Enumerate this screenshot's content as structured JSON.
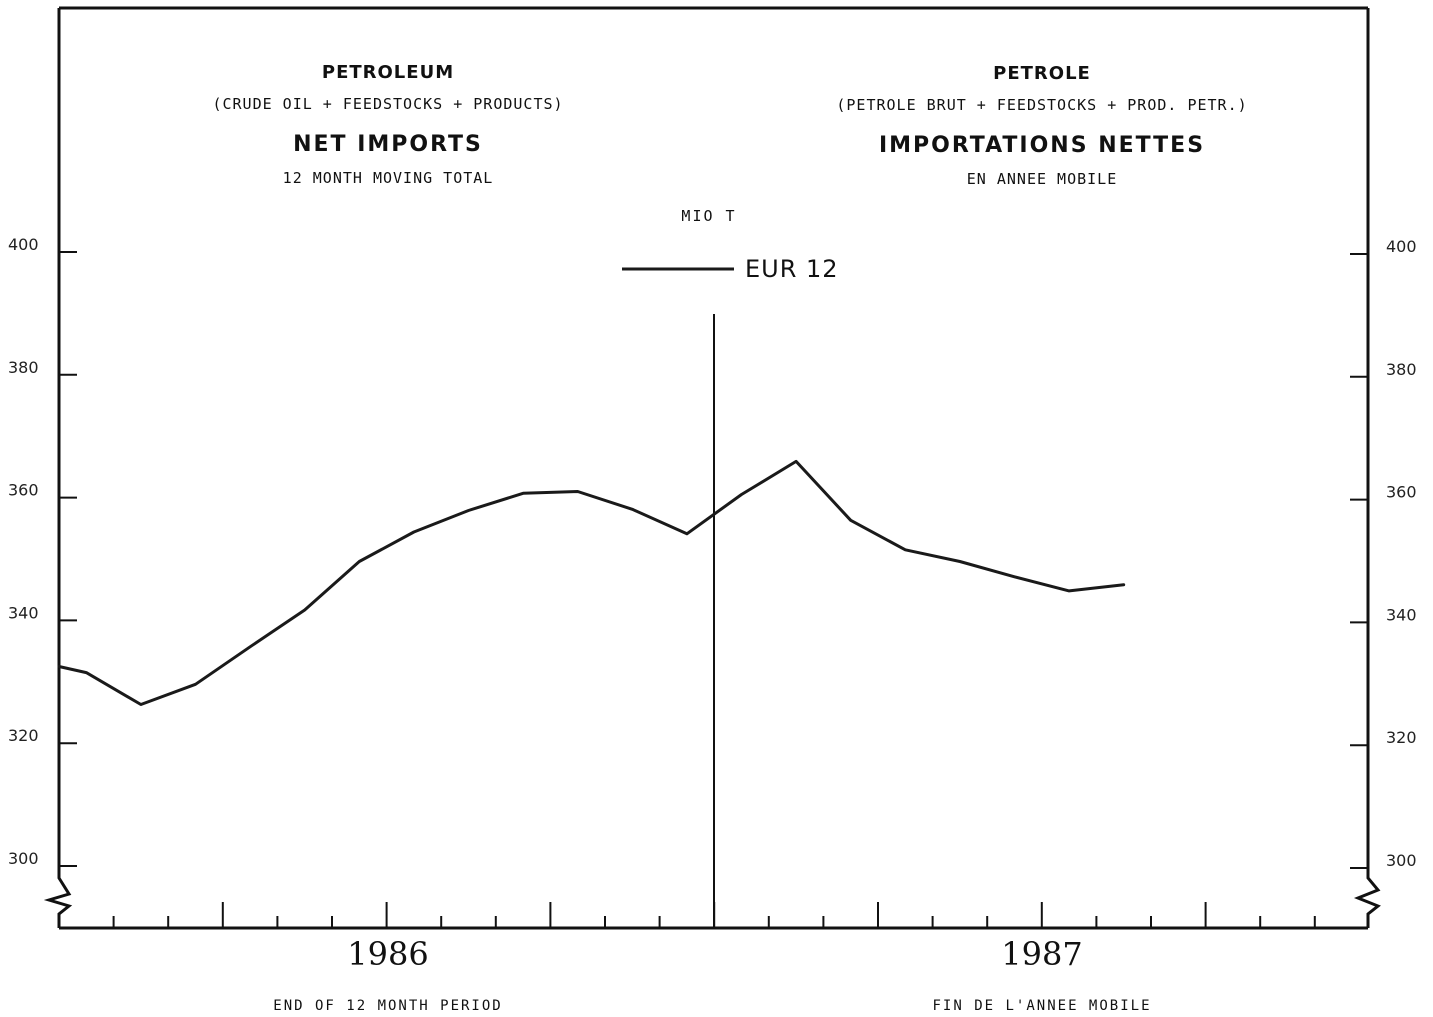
{
  "titles": {
    "left_title": "PETROLEUM",
    "left_subtitle": "(CRUDE OIL + FEEDSTOCKS + PRODUCTS)",
    "left_heading": "NET IMPORTS",
    "left_caption": "12 MONTH MOVING TOTAL",
    "right_title": "PETROLE",
    "right_subtitle": "(PETROLE BRUT + FEEDSTOCKS + PROD. PETR.)",
    "right_heading": "IMPORTATIONS NETTES",
    "right_caption": "EN ANNEE MOBILE",
    "unit": "MIO T"
  },
  "footer": {
    "left": "END OF 12 MONTH PERIOD",
    "right": "FIN DE L'ANNEE MOBILE"
  },
  "colors": {
    "line": "#1a1a1a",
    "frame": "#111111"
  },
  "chart_data": {
    "type": "line",
    "title": "PETROLEUM / PETROLE — NET IMPORTS / IMPORTATIONS NETTES",
    "ylabel": "MIO T",
    "ylim": [
      300,
      400
    ],
    "yticks": [
      300,
      320,
      340,
      360,
      380,
      400
    ],
    "x_groups": [
      "1986",
      "1987"
    ],
    "x_range_months": [
      0,
      23
    ],
    "legend": {
      "position": "top-center",
      "entries": [
        "EUR 12"
      ]
    },
    "grid": false,
    "axis_break": true,
    "series": [
      {
        "name": "EUR 12",
        "x": [
          0,
          0.5,
          1.5,
          2.5,
          3.5,
          4.5,
          5.5,
          6.5,
          7.5,
          8.5,
          9.5,
          10.5,
          11.5,
          12.5,
          13.5,
          14.5,
          15.5,
          16.5,
          17.5,
          18.5,
          19.5
        ],
        "values": [
          332.5,
          331.5,
          326.3,
          329.6,
          335.7,
          341.7,
          349.6,
          354.4,
          357.9,
          360.7,
          361.0,
          358.1,
          354.1,
          360.5,
          365.9,
          356.3,
          351.5,
          349.6,
          347.1,
          344.8,
          345.8
        ]
      }
    ]
  }
}
